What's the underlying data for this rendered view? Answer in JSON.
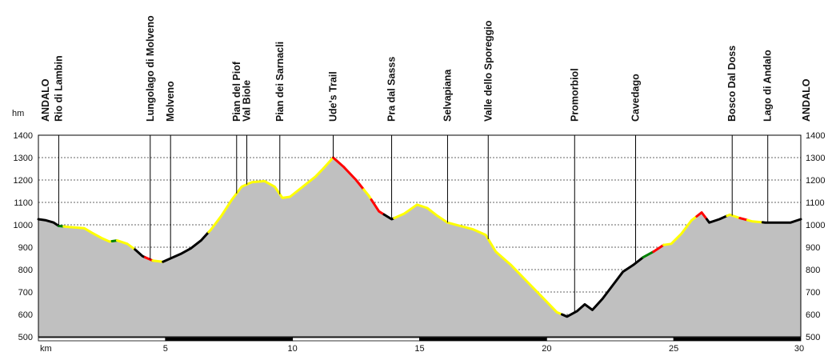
{
  "chart_data": {
    "type": "area",
    "title": "",
    "xlabel": "km",
    "ylabel": "hm",
    "xlim": [
      0,
      30
    ],
    "ylim": [
      500,
      1400
    ],
    "y_ticks": [
      500,
      600,
      700,
      800,
      900,
      1000,
      1100,
      1200,
      1300,
      1400
    ],
    "x_ticks": [
      5,
      10,
      15,
      20,
      25,
      30
    ],
    "grid": true,
    "fill_color": "#c0c0c0",
    "surface_colors": {
      "asphalt": "#000000",
      "dirt": "#ffff00",
      "trail": "#ff0000",
      "other": "#008000"
    },
    "profile": [
      [
        0.0,
        1025
      ],
      [
        0.3,
        1020
      ],
      [
        0.6,
        1010
      ],
      [
        0.8,
        995
      ],
      [
        1.2,
        990
      ],
      [
        1.8,
        985
      ],
      [
        2.1,
        965
      ],
      [
        2.5,
        940
      ],
      [
        2.8,
        925
      ],
      [
        3.1,
        930
      ],
      [
        3.5,
        915
      ],
      [
        3.8,
        890
      ],
      [
        4.1,
        860
      ],
      [
        4.5,
        840
      ],
      [
        4.9,
        835
      ],
      [
        5.2,
        850
      ],
      [
        5.6,
        870
      ],
      [
        6.0,
        895
      ],
      [
        6.4,
        930
      ],
      [
        6.8,
        980
      ],
      [
        7.2,
        1040
      ],
      [
        7.6,
        1110
      ],
      [
        8.0,
        1170
      ],
      [
        8.4,
        1190
      ],
      [
        8.9,
        1195
      ],
      [
        9.3,
        1170
      ],
      [
        9.6,
        1120
      ],
      [
        9.9,
        1125
      ],
      [
        10.4,
        1170
      ],
      [
        10.9,
        1215
      ],
      [
        11.2,
        1250
      ],
      [
        11.6,
        1300
      ],
      [
        12.0,
        1260
      ],
      [
        12.5,
        1200
      ],
      [
        13.0,
        1130
      ],
      [
        13.4,
        1060
      ],
      [
        13.9,
        1025
      ],
      [
        14.4,
        1050
      ],
      [
        14.9,
        1090
      ],
      [
        15.3,
        1075
      ],
      [
        15.7,
        1040
      ],
      [
        16.1,
        1010
      ],
      [
        16.6,
        995
      ],
      [
        17.1,
        980
      ],
      [
        17.6,
        955
      ],
      [
        18.0,
        880
      ],
      [
        18.6,
        820
      ],
      [
        19.2,
        750
      ],
      [
        19.8,
        680
      ],
      [
        20.4,
        610
      ],
      [
        20.8,
        590
      ],
      [
        21.2,
        615
      ],
      [
        21.5,
        645
      ],
      [
        21.8,
        620
      ],
      [
        22.2,
        670
      ],
      [
        22.6,
        730
      ],
      [
        23.0,
        790
      ],
      [
        23.4,
        820
      ],
      [
        23.8,
        855
      ],
      [
        24.2,
        880
      ],
      [
        24.6,
        910
      ],
      [
        24.9,
        915
      ],
      [
        25.3,
        960
      ],
      [
        25.7,
        1020
      ],
      [
        26.1,
        1055
      ],
      [
        26.4,
        1010
      ],
      [
        26.8,
        1025
      ],
      [
        27.2,
        1045
      ],
      [
        27.6,
        1030
      ],
      [
        28.1,
        1015
      ],
      [
        28.6,
        1010
      ],
      [
        29.1,
        1010
      ],
      [
        29.6,
        1010
      ],
      [
        30.0,
        1025
      ]
    ],
    "segments": [
      {
        "from": 0.0,
        "to": 0.8,
        "surface": "asphalt"
      },
      {
        "from": 0.8,
        "to": 1.0,
        "surface": "other"
      },
      {
        "from": 1.0,
        "to": 2.9,
        "surface": "dirt"
      },
      {
        "from": 2.9,
        "to": 3.1,
        "surface": "other"
      },
      {
        "from": 3.1,
        "to": 3.8,
        "surface": "dirt"
      },
      {
        "from": 3.8,
        "to": 4.2,
        "surface": "asphalt"
      },
      {
        "from": 4.2,
        "to": 4.5,
        "surface": "trail"
      },
      {
        "from": 4.5,
        "to": 4.9,
        "surface": "dirt"
      },
      {
        "from": 4.9,
        "to": 6.7,
        "surface": "asphalt"
      },
      {
        "from": 6.7,
        "to": 11.6,
        "surface": "dirt"
      },
      {
        "from": 11.6,
        "to": 12.8,
        "surface": "trail"
      },
      {
        "from": 12.8,
        "to": 13.1,
        "surface": "dirt"
      },
      {
        "from": 13.1,
        "to": 13.6,
        "surface": "trail"
      },
      {
        "from": 13.6,
        "to": 14.0,
        "surface": "asphalt"
      },
      {
        "from": 14.0,
        "to": 20.6,
        "surface": "dirt"
      },
      {
        "from": 20.6,
        "to": 23.8,
        "surface": "asphalt"
      },
      {
        "from": 23.8,
        "to": 24.2,
        "surface": "other"
      },
      {
        "from": 24.2,
        "to": 24.6,
        "surface": "trail"
      },
      {
        "from": 24.6,
        "to": 25.9,
        "surface": "dirt"
      },
      {
        "from": 25.9,
        "to": 26.3,
        "surface": "trail"
      },
      {
        "from": 26.3,
        "to": 27.1,
        "surface": "asphalt"
      },
      {
        "from": 27.1,
        "to": 27.6,
        "surface": "dirt"
      },
      {
        "from": 27.6,
        "to": 27.9,
        "surface": "trail"
      },
      {
        "from": 27.9,
        "to": 28.5,
        "surface": "dirt"
      },
      {
        "from": 28.5,
        "to": 30.0,
        "surface": "asphalt"
      }
    ],
    "waypoints": [
      {
        "label": "ANDALO",
        "km": 0.0
      },
      {
        "label": "Rio di Lambin",
        "km": 0.8
      },
      {
        "label": "Lungolago di Molveno",
        "km": 4.4
      },
      {
        "label": "Molveno",
        "km": 5.2
      },
      {
        "label": "Pian del Piof",
        "km": 7.8
      },
      {
        "label": "Val Biole",
        "km": 8.2
      },
      {
        "label": "Pian dei Sarnacli",
        "km": 9.5
      },
      {
        "label": "Ude's Trail",
        "km": 11.6
      },
      {
        "label": "Pra dal Sasss",
        "km": 13.9
      },
      {
        "label": "Selvapiana",
        "km": 16.1
      },
      {
        "label": "Valle dello Sporeggio",
        "km": 17.7
      },
      {
        "label": "Promorbiol",
        "km": 21.1
      },
      {
        "label": "Cavedago",
        "km": 23.5
      },
      {
        "label": "Bosco Dal Doss",
        "km": 27.3
      },
      {
        "label": "Lago di Andalo",
        "km": 28.7
      },
      {
        "label": "ANDALO",
        "km": 30.0
      }
    ]
  }
}
